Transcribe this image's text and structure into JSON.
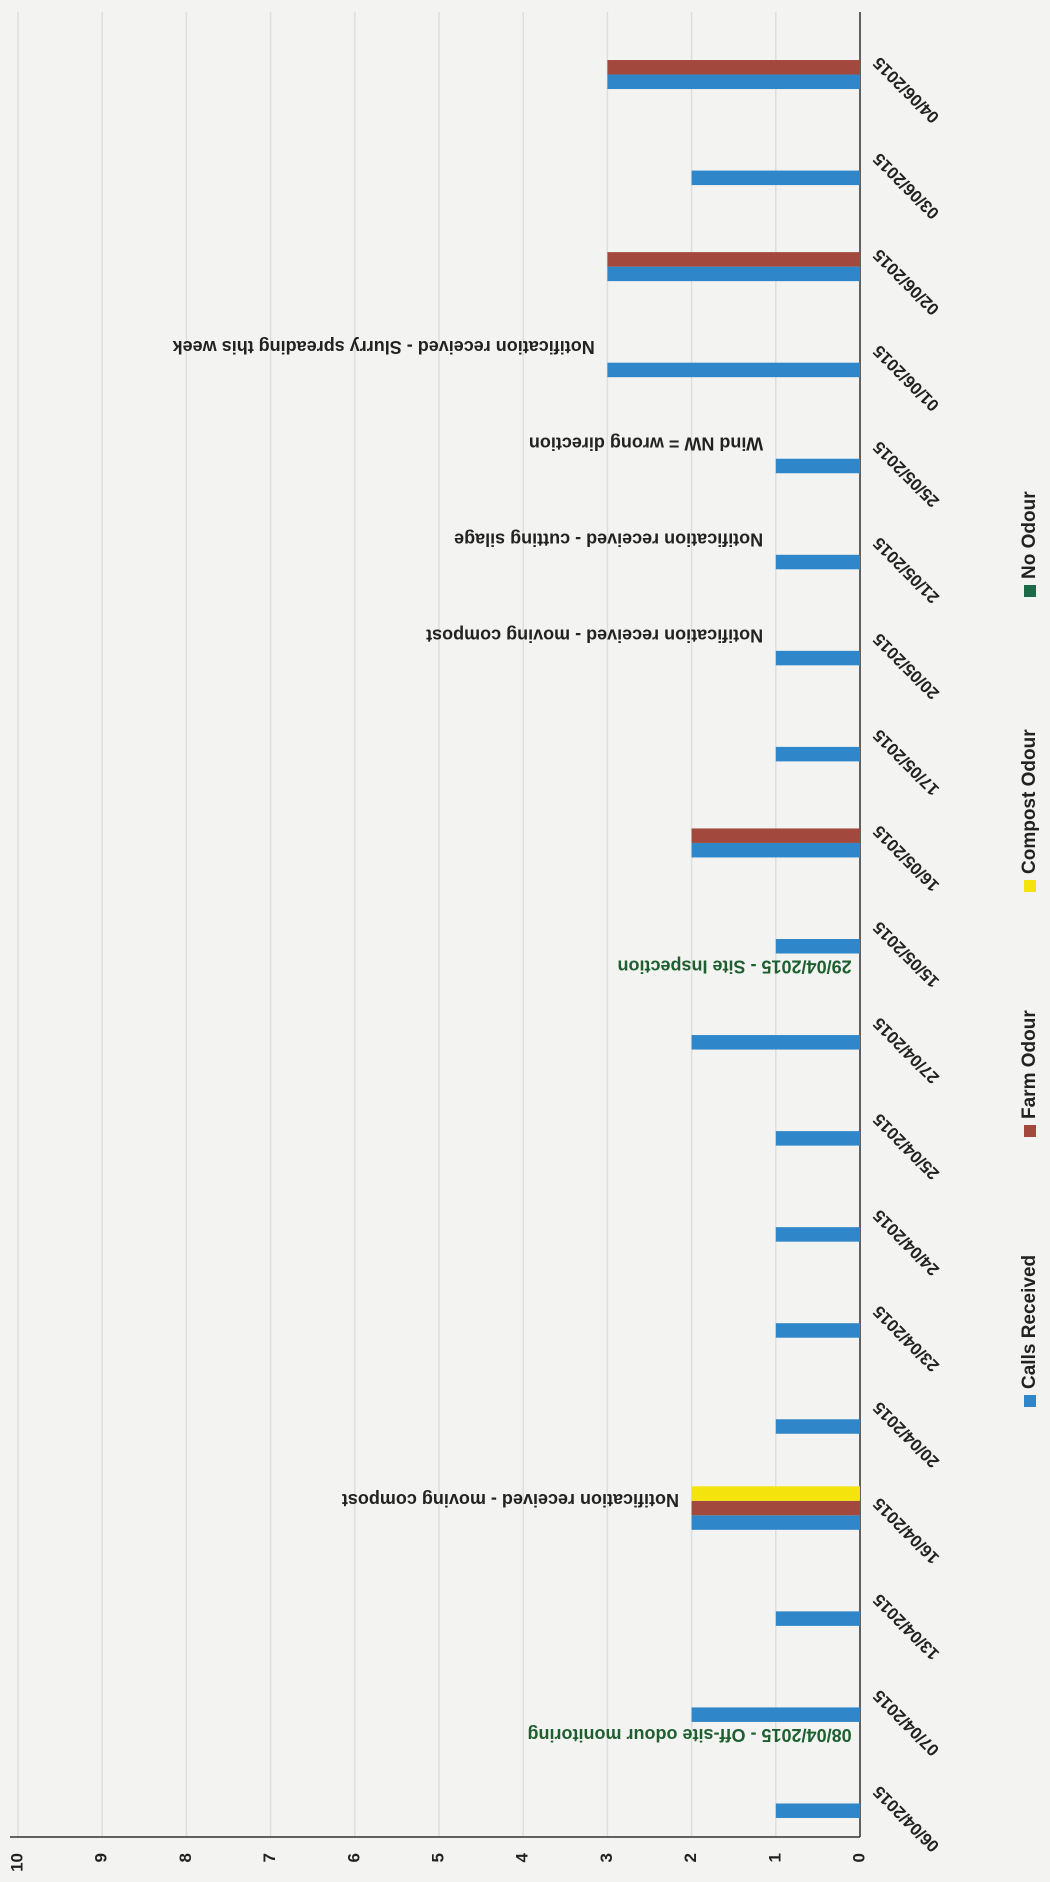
{
  "chart_data": {
    "type": "bar",
    "categories": [
      "06/04/2015",
      "07/04/2015",
      "13/04/2015",
      "16/04/2015",
      "20/04/2015",
      "23/04/2015",
      "24/04/2015",
      "25/04/2015",
      "27/04/2015",
      "15/05/2015",
      "16/05/2015",
      "17/05/2015",
      "20/05/2015",
      "21/05/2015",
      "25/05/2015",
      "01/06/2015",
      "02/06/2015",
      "03/06/2015",
      "04/06/2015"
    ],
    "series": [
      {
        "name": "Calls Received",
        "color": "#2f87c9",
        "values": [
          1,
          2,
          1,
          2,
          1,
          1,
          1,
          1,
          2,
          1,
          2,
          1,
          1,
          1,
          1,
          3,
          3,
          2,
          3
        ]
      },
      {
        "name": "Farm Odour",
        "color": "#a3483d",
        "values": [
          0,
          0,
          0,
          2,
          0,
          0,
          0,
          0,
          0,
          0,
          2,
          0,
          0,
          0,
          0,
          0,
          3,
          0,
          3
        ]
      },
      {
        "name": "Compost Odour",
        "color": "#f4e30c",
        "values": [
          0,
          0,
          0,
          2,
          0,
          0,
          0,
          0,
          0,
          0,
          0,
          0,
          0,
          0,
          0,
          0,
          0,
          0,
          0
        ]
      },
      {
        "name": "No Odour",
        "color": "#1b6a48",
        "values": [
          0,
          0,
          0,
          0,
          0,
          0,
          0,
          0,
          0,
          0,
          0,
          0,
          0,
          0,
          0,
          0,
          0,
          0,
          0
        ]
      }
    ],
    "ylim": [
      0,
      10
    ],
    "yticks": [
      0,
      1,
      2,
      3,
      4,
      5,
      6,
      7,
      8,
      9,
      10
    ],
    "grid": true,
    "legend": "bottom",
    "annotations": [
      {
        "text": "08/04/2015 - Off-site odour monitoring",
        "color": "#1d5f2f"
      },
      {
        "text": "Notification received - moving compost",
        "color": "#222222"
      },
      {
        "text": "29/04/2015 - Site Inspection",
        "color": "#1d5f2f"
      },
      {
        "text": "Notification received - moving compost",
        "color": "#222222"
      },
      {
        "text": "Notification received - cutting silage",
        "color": "#222222"
      },
      {
        "text": "Wind NW = wrong direction",
        "color": "#222222"
      },
      {
        "text": "Notification received - Slurry spreading this week",
        "color": "#222222"
      }
    ]
  }
}
